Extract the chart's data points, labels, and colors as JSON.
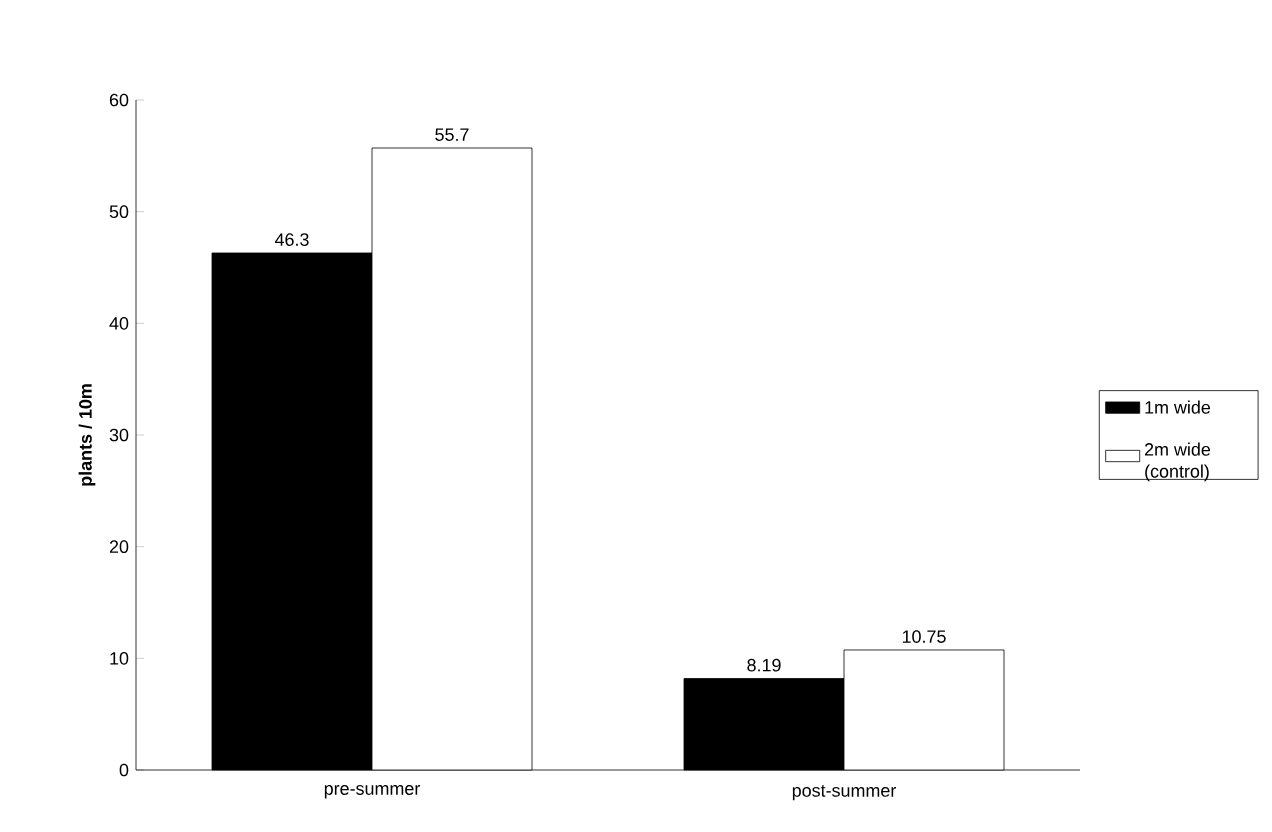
{
  "chart_data": {
    "type": "bar",
    "ylabel": "plants / 10m",
    "categories": [
      "pre-summer",
      "post-summer"
    ],
    "series": [
      {
        "name": "1m wide",
        "color": "#000000",
        "values": [
          46.3,
          8.19
        ]
      },
      {
        "name": "2m wide (control)",
        "color": "#ffffff",
        "values": [
          55.7,
          10.75
        ]
      }
    ],
    "ylim": [
      0,
      60
    ],
    "yticks": [
      0,
      10,
      20,
      30,
      40,
      50,
      60
    ],
    "data_labels": true,
    "legend": "right",
    "grid": false
  }
}
